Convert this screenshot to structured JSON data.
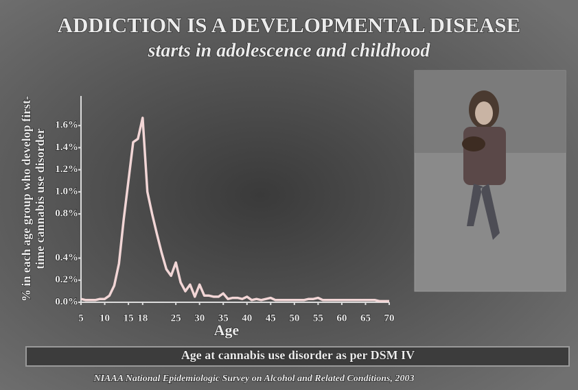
{
  "chart_data": {
    "type": "line",
    "title": "ADDICTION IS A DEVELOPMENTAL DISEASE",
    "subtitle": "starts in adolescence and childhood",
    "ylabel": [
      "% in each age group who develop first-",
      "time cannabis use disorder"
    ],
    "xlabel": "Age",
    "note": "Age at cannabis use disorder as per DSM IV",
    "source": "NIAAA National Epidemiologic Survey on Alcohol and Related Conditions, 2003",
    "color": "#f2d6d6",
    "x": [
      5,
      6,
      7,
      8,
      9,
      10,
      11,
      12,
      13,
      14,
      15,
      16,
      17,
      18,
      19,
      20,
      21,
      22,
      23,
      24,
      25,
      26,
      27,
      28,
      29,
      30,
      31,
      32,
      33,
      34,
      35,
      36,
      37,
      38,
      39,
      40,
      41,
      42,
      43,
      44,
      45,
      46,
      47,
      48,
      49,
      50,
      51,
      52,
      53,
      54,
      55,
      56,
      57,
      58,
      59,
      60,
      61,
      62,
      63,
      64,
      65,
      66,
      67,
      68,
      69,
      70
    ],
    "values": [
      0.03,
      0.02,
      0.02,
      0.02,
      0.03,
      0.03,
      0.06,
      0.15,
      0.35,
      0.75,
      1.1,
      1.45,
      1.48,
      1.67,
      1.0,
      0.8,
      0.62,
      0.45,
      0.3,
      0.24,
      0.36,
      0.18,
      0.1,
      0.16,
      0.05,
      0.16,
      0.06,
      0.06,
      0.05,
      0.05,
      0.08,
      0.03,
      0.04,
      0.04,
      0.03,
      0.05,
      0.02,
      0.03,
      0.02,
      0.03,
      0.04,
      0.02,
      0.02,
      0.02,
      0.02,
      0.02,
      0.02,
      0.02,
      0.03,
      0.03,
      0.04,
      0.02,
      0.02,
      0.02,
      0.02,
      0.02,
      0.02,
      0.02,
      0.02,
      0.02,
      0.02,
      0.02,
      0.02,
      0.01,
      0.01,
      0.01
    ],
    "xlim": [
      5,
      70
    ],
    "xticks": [
      5,
      10,
      15,
      18,
      25,
      30,
      35,
      40,
      45,
      50,
      55,
      60,
      65,
      70
    ],
    "ylim": [
      0,
      1.8
    ],
    "yticks": [
      {
        "value": 0,
        "label": "0.0%"
      },
      {
        "value": 0.2,
        "label": "0.2%"
      },
      {
        "value": 0.4,
        "label": "0.4%"
      },
      {
        "value": 0.8,
        "label": "0.8%"
      },
      {
        "value": 1.0,
        "label": "1.0%"
      },
      {
        "value": 1.2,
        "label": "1.2%"
      },
      {
        "value": 1.4,
        "label": "1.4%"
      },
      {
        "value": 1.6,
        "label": "1.6%"
      }
    ]
  }
}
